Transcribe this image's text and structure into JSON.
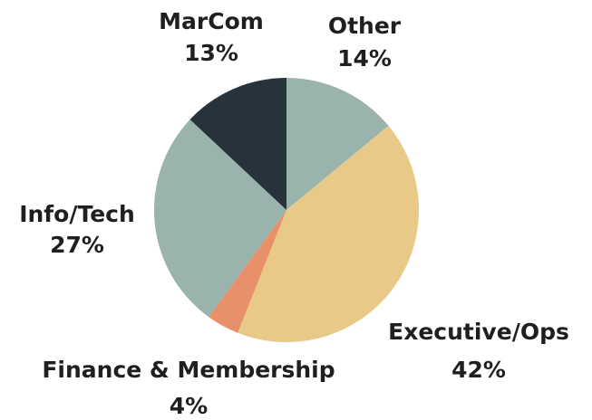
{
  "chart_data": {
    "type": "pie",
    "categories": [
      "Other",
      "Executive/Ops",
      "Finance & Membership",
      "Info/Tech",
      "MarCom"
    ],
    "values": [
      14,
      42,
      4,
      27,
      13
    ],
    "value_labels": [
      "14%",
      "42%",
      "4%",
      "27%",
      "13%"
    ],
    "colors": [
      "#9bb3ad",
      "#e8c987",
      "#e8906a",
      "#9bb3ad",
      "#27323a"
    ]
  }
}
